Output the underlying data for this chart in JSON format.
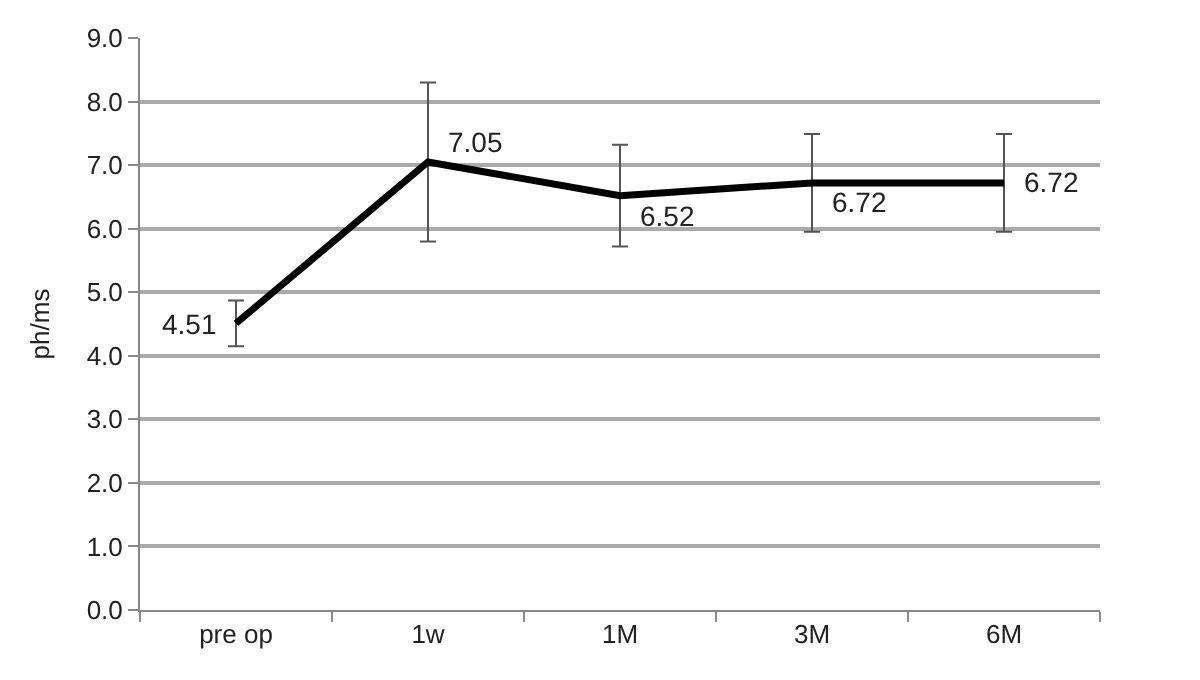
{
  "chart_data": {
    "type": "line",
    "ylabel": "ph/ms",
    "categories": [
      "pre op",
      "1w",
      "1M",
      "3M",
      "6M"
    ],
    "series": [
      {
        "color": "#000000",
        "values": [
          4.51,
          7.05,
          6.52,
          6.72,
          6.72
        ],
        "errors": [
          0.36,
          1.25,
          0.8,
          0.77,
          0.77
        ]
      }
    ],
    "ylim": [
      0,
      9
    ],
    "yticks": [
      {
        "value": 0,
        "label": "0.0"
      },
      {
        "value": 1,
        "label": "1.0"
      },
      {
        "value": 2,
        "label": "2.0"
      },
      {
        "value": 3,
        "label": "3.0"
      },
      {
        "value": 4,
        "label": "4.0"
      },
      {
        "value": 5,
        "label": "5.0"
      },
      {
        "value": 6,
        "label": "6.0"
      },
      {
        "value": 7,
        "label": "7.0"
      },
      {
        "value": 8,
        "label": "8.0"
      },
      {
        "value": 9,
        "label": "9.0"
      }
    ],
    "grid": "y",
    "marker": "none",
    "line_style": "solid",
    "data_labels": true
  }
}
